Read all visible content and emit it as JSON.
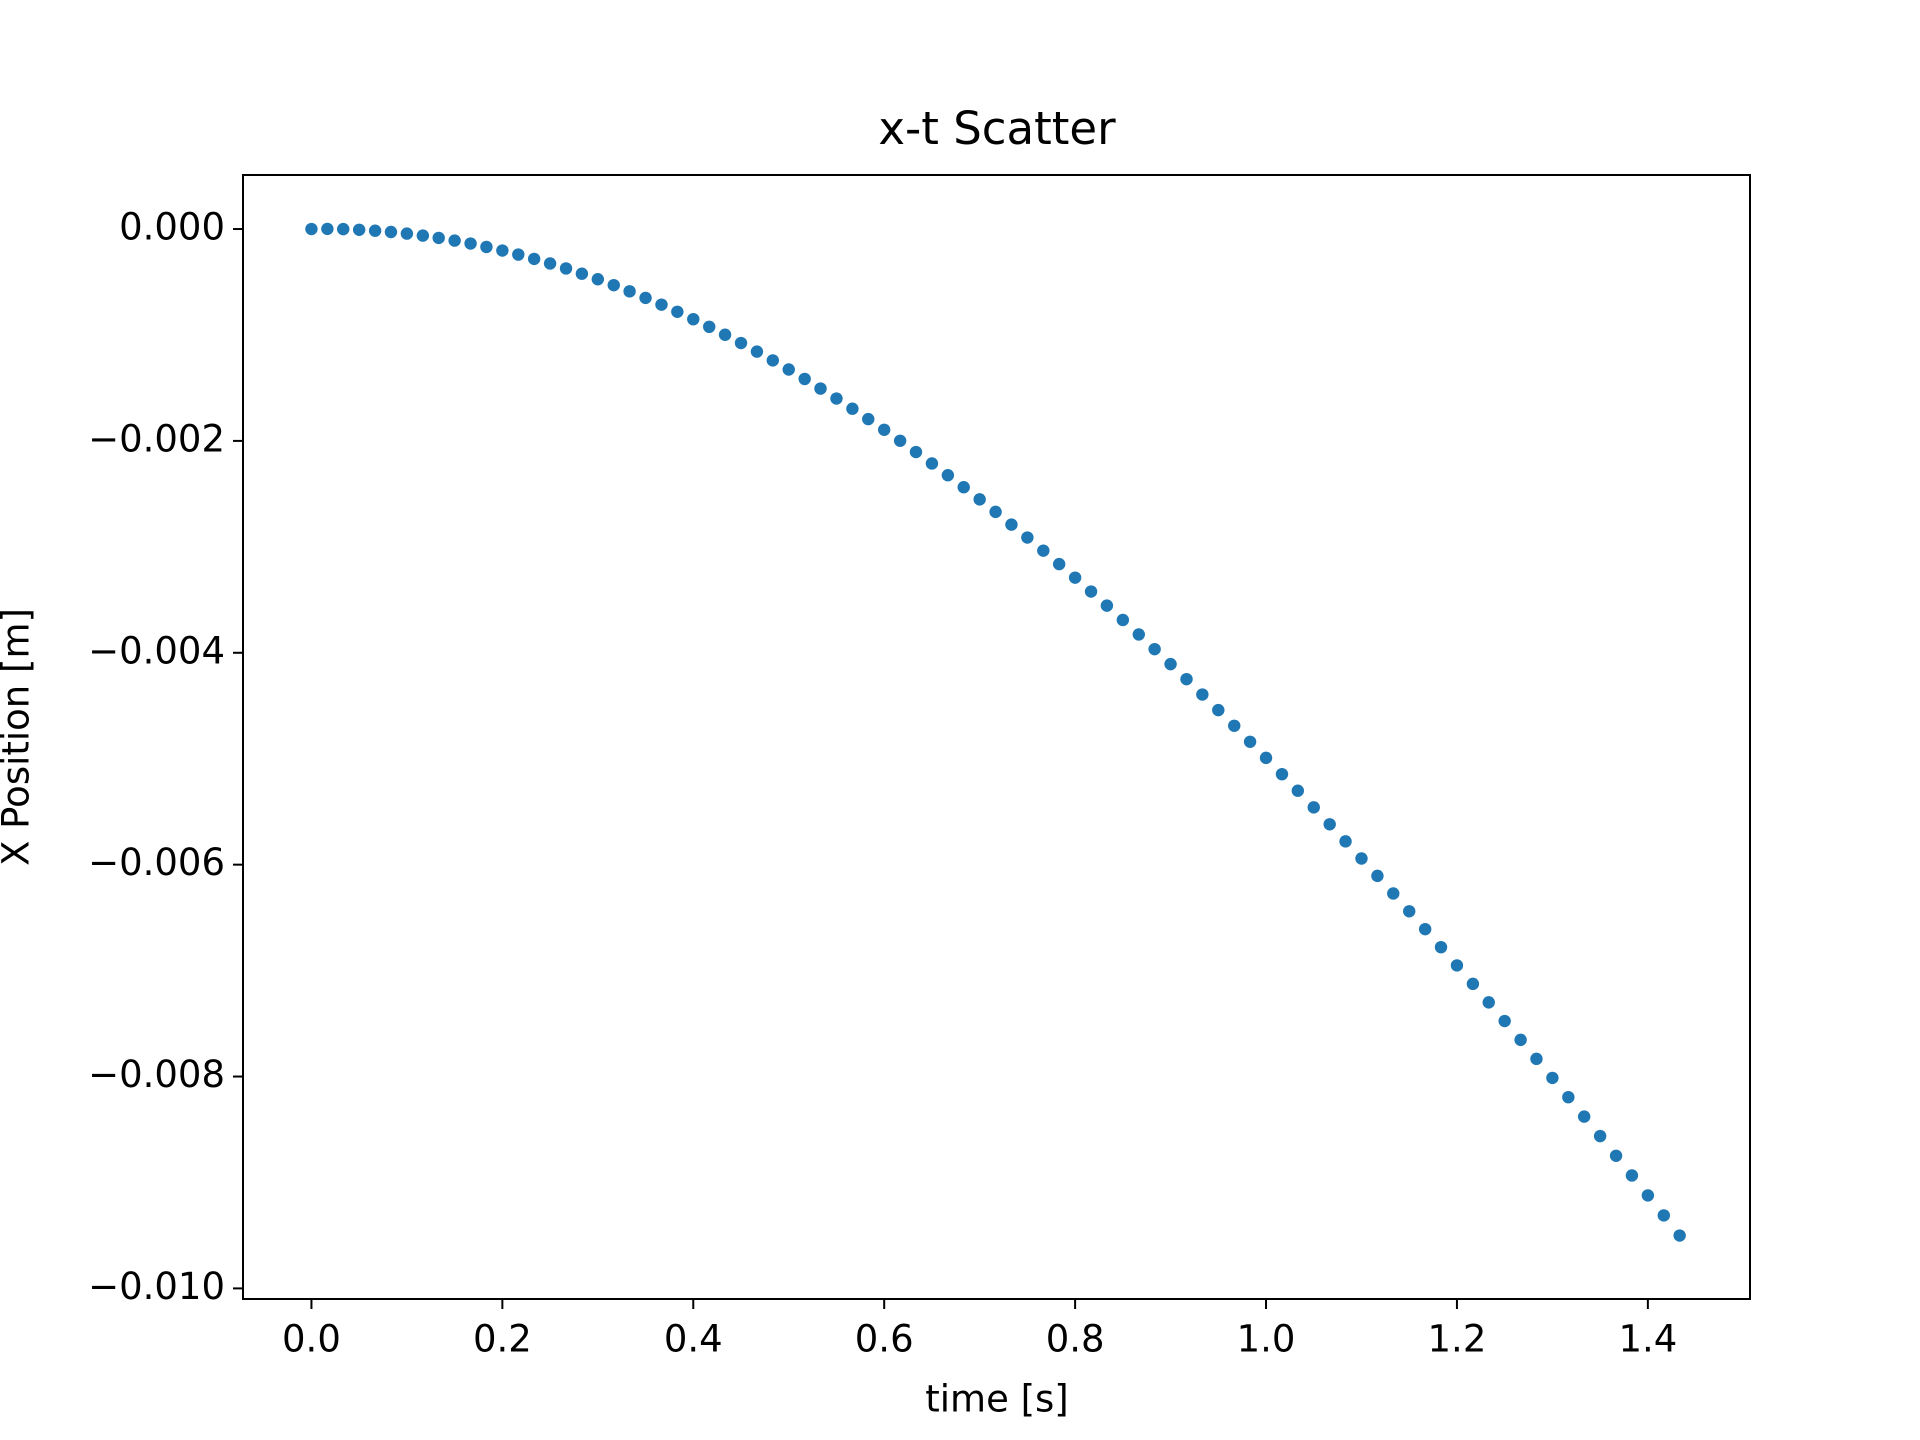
{
  "chart_data": {
    "type": "scatter",
    "title": "x-t Scatter",
    "xlabel": "time [s]",
    "ylabel": "X Position [m]",
    "color": "#1f77b4",
    "x": [
      0,
      0.0167,
      0.0333,
      0.05,
      0.0667,
      0.0833,
      0.1,
      0.1167,
      0.1333,
      0.15,
      0.1667,
      0.1833,
      0.2,
      0.2167,
      0.2333,
      0.25,
      0.2667,
      0.2833,
      0.3,
      0.3167,
      0.3333,
      0.35,
      0.3667,
      0.3833,
      0.4,
      0.4167,
      0.4333,
      0.45,
      0.4667,
      0.4833,
      0.5,
      0.5167,
      0.5333,
      0.55,
      0.5667,
      0.5833,
      0.6,
      0.6167,
      0.6333,
      0.65,
      0.6667,
      0.6833,
      0.7,
      0.7167,
      0.7333,
      0.75,
      0.7667,
      0.7833,
      0.8,
      0.8167,
      0.8333,
      0.85,
      0.8667,
      0.8833,
      0.9,
      0.9167,
      0.9333,
      0.95,
      0.9667,
      0.9833,
      1,
      1.0167,
      1.0333,
      1.05,
      1.0667,
      1.0833,
      1.1,
      1.1167,
      1.1333,
      1.15,
      1.1667,
      1.1833,
      1.2,
      1.2167,
      1.2333,
      1.25,
      1.2667,
      1.2833,
      1.3,
      1.3167,
      1.3333,
      1.35,
      1.3667,
      1.3833,
      1.4,
      1.4167,
      1.4333
    ],
    "values": [
      0,
      1e-06,
      -1e-06,
      -7e-06,
      -1.6e-05,
      -2.8e-05,
      -4.3e-05,
      -6.2e-05,
      -8.4e-05,
      -0.000109,
      -0.000137,
      -0.000169,
      -0.000203,
      -0.000241,
      -0.000282,
      -0.000325,
      -0.000372,
      -0.000422,
      -0.000474,
      -0.00053,
      -0.000588,
      -0.00065,
      -0.000714,
      -0.000781,
      -0.000851,
      -0.000923,
      -0.000998,
      -0.001076,
      -0.001157,
      -0.00124,
      -0.001326,
      -0.001415,
      -0.001506,
      -0.0016,
      -0.001696,
      -0.001794,
      -0.001895,
      -0.001999,
      -0.002105,
      -0.002213,
      -0.002324,
      -0.002437,
      -0.002552,
      -0.00267,
      -0.00279,
      -0.002912,
      -0.003036,
      -0.003163,
      -0.003291,
      -0.003422,
      -0.003555,
      -0.00369,
      -0.003827,
      -0.003966,
      -0.004107,
      -0.004249,
      -0.004394,
      -0.004541,
      -0.004689,
      -0.00484,
      -0.004992,
      -0.005146,
      -0.005302,
      -0.005459,
      -0.005619,
      -0.00578,
      -0.005942,
      -0.006106,
      -0.006272,
      -0.00644,
      -0.006609,
      -0.006779,
      -0.006951,
      -0.007125,
      -0.0073,
      -0.007476,
      -0.007654,
      -0.007833,
      -0.008013,
      -0.008195,
      -0.008378,
      -0.008562,
      -0.008748,
      -0.008934,
      -0.009122,
      -0.009311,
      -0.009501
    ],
    "xlim": [
      -0.0717,
      1.507
    ],
    "ylim": [
      -0.0101,
      0.00051
    ],
    "xticks": [
      {
        "value": 0,
        "label": "0.0"
      },
      0.2,
      0.4,
      0.6,
      0.8,
      {
        "value": 1,
        "label": "1.0"
      },
      1.2,
      1.4
    ],
    "yticks": [
      {
        "value": 0,
        "label": "0.000"
      },
      {
        "value": -0.002,
        "label": "−0.002"
      },
      {
        "value": -0.004,
        "label": "−0.004"
      },
      {
        "value": -0.006,
        "label": "−0.006"
      },
      {
        "value": -0.008,
        "label": "−0.008"
      },
      {
        "value": -0.01,
        "label": "−0.010"
      }
    ]
  }
}
